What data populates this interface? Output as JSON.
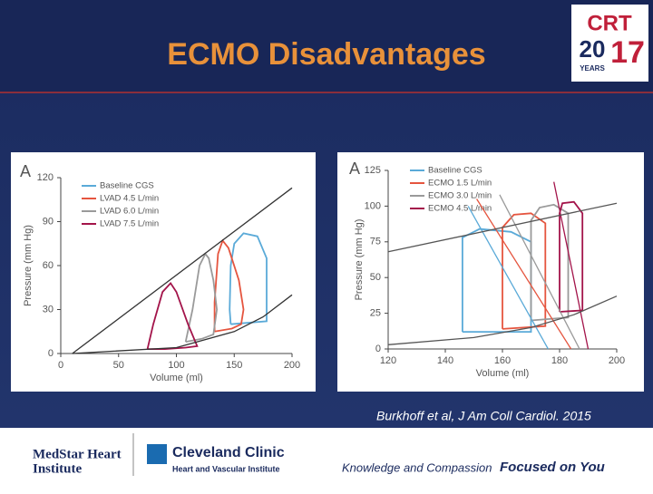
{
  "slide": {
    "title": "ECMO Disadvantages",
    "logo": {
      "top": "CRT",
      "year_left": "20",
      "year_right": "17",
      "sub": "YEARS"
    },
    "citation": "Burkhoff et al, J Am Coll Cardiol. 2015",
    "footer": {
      "medstar": "MedStar Heart",
      "medstar_2": "Institute",
      "cleveland": "Cleveland Clinic",
      "cleveland_sub": "Heart and Vascular Institute",
      "tagline": "Knowledge and Compassion",
      "tagline_bold": "Focused on You"
    }
  },
  "chart_data": [
    {
      "type": "line",
      "label": "A",
      "x_label": "Volume (ml)",
      "y_label": "Pressure (mm Hg)",
      "xlim": [
        0,
        200
      ],
      "xticks": [
        0,
        50,
        100,
        150,
        200
      ],
      "ylim": [
        0,
        120
      ],
      "yticks": [
        0,
        30,
        60,
        90,
        120
      ],
      "series": [
        {
          "name": "Baseline CGS",
          "color": "#5aaad8",
          "x": [
            147,
            178,
            178,
            170,
            158,
            150,
            147,
            146,
            147
          ],
          "values": [
            20,
            22,
            65,
            80,
            82,
            75,
            60,
            30,
            20
          ]
        },
        {
          "name": "LVAD 4.5 L/min",
          "color": "#e5553f",
          "x": [
            133,
            148,
            156,
            158,
            154,
            145,
            140,
            136,
            133,
            133
          ],
          "values": [
            15,
            17,
            20,
            30,
            50,
            72,
            77,
            68,
            35,
            15
          ]
        },
        {
          "name": "LVAD 6.0 L/min",
          "color": "#9a9a9a",
          "x": [
            108,
            122,
            132,
            135,
            132,
            128,
            125,
            120,
            114,
            108
          ],
          "values": [
            8,
            10,
            13,
            30,
            50,
            65,
            68,
            60,
            30,
            8
          ]
        },
        {
          "name": "LVAD 7.5 L/min",
          "color": "#a3144a",
          "x": [
            75,
            90,
            108,
            118,
            110,
            100,
            95,
            88,
            80,
            75
          ],
          "values": [
            3,
            3,
            4,
            5,
            20,
            42,
            48,
            42,
            20,
            3
          ]
        },
        {
          "color": "#333333",
          "x": [
            10,
            200
          ],
          "values": [
            0,
            113
          ]
        },
        {
          "color": "#333333",
          "x": [
            10,
            100,
            150,
            175,
            200
          ],
          "values": [
            0,
            4,
            15,
            25,
            40
          ]
        }
      ]
    },
    {
      "type": "line",
      "label": "A",
      "x_label": "Volume (ml)",
      "y_label": "Pressure (mm Hg)",
      "xlim": [
        120,
        200
      ],
      "xticks": [
        120,
        140,
        160,
        180,
        200
      ],
      "ylim": [
        0,
        125
      ],
      "yticks": [
        0,
        25,
        50,
        75,
        100,
        125
      ],
      "series": [
        {
          "name": "Baseline CGS",
          "color": "#5aaad8",
          "x": [
            146,
            170,
            170,
            163,
            152,
            146,
            146
          ],
          "values": [
            12,
            12,
            75,
            82,
            84,
            78,
            12
          ]
        },
        {
          "name": "ECMO 1.5 L/min",
          "color": "#e5553f",
          "x": [
            160,
            175,
            175,
            170,
            164,
            160,
            160
          ],
          "values": [
            14,
            16,
            88,
            95,
            94,
            85,
            14
          ]
        },
        {
          "name": "ECMO 3.0 L/min",
          "color": "#9a9a9a",
          "x": [
            170,
            183,
            183,
            178,
            173,
            170,
            170
          ],
          "values": [
            20,
            22,
            95,
            101,
            99,
            90,
            20
          ]
        },
        {
          "name": "ECMO 4.5 L/min",
          "color": "#a3144a",
          "x": [
            180,
            188,
            188,
            185,
            181,
            180,
            180
          ],
          "values": [
            26,
            27,
            95,
            103,
            102,
            95,
            26
          ]
        },
        {
          "color": "#5aaad8",
          "x": [
            148,
            176
          ],
          "values": [
            100,
            0
          ]
        },
        {
          "color": "#e5553f",
          "x": [
            151,
            184
          ],
          "values": [
            105,
            0
          ]
        },
        {
          "color": "#9a9a9a",
          "x": [
            159,
            187
          ],
          "values": [
            108,
            0
          ]
        },
        {
          "color": "#a3144a",
          "x": [
            178,
            190
          ],
          "values": [
            117,
            0
          ]
        },
        {
          "color": "#555555",
          "x": [
            120,
            200
          ],
          "values": [
            68,
            102
          ]
        },
        {
          "color": "#555555",
          "x": [
            120,
            150,
            170,
            185,
            200
          ],
          "values": [
            3,
            8,
            15,
            24,
            37
          ]
        }
      ]
    }
  ]
}
